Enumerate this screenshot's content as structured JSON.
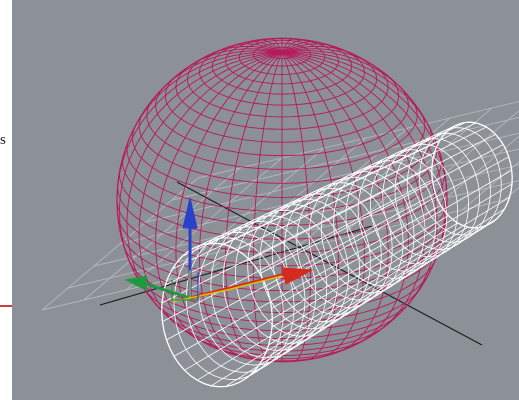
{
  "margin_text": "s",
  "viewport": {
    "background": "#8b9196",
    "grid_color": "#b3b8bd",
    "sphere_color": "#b8195b",
    "cylinder_color": "#ffffff",
    "axis_line_color": "#1a1a1a",
    "gizmo": {
      "z_color": "#2940c9",
      "x_color": "#d52b1e",
      "y_color": "#1e9a3c",
      "helper_color": "#e0c200"
    }
  },
  "callout": {
    "color": "#d33a3a"
  }
}
